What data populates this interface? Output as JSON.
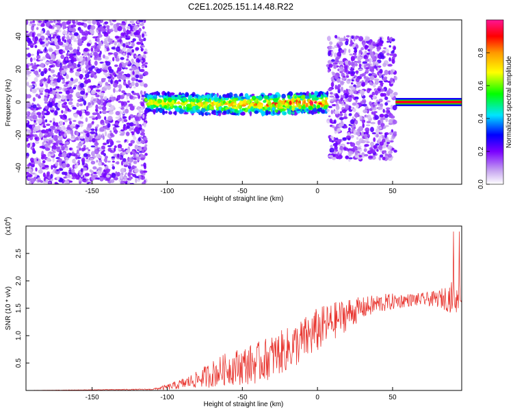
{
  "title": "C2E1.2025.151.14.48.R22",
  "chart_data": [
    {
      "type": "heatmap",
      "xlabel": "Height of straight line (km)",
      "ylabel": "Frequency (Hz)",
      "xlim": [
        -194,
        96
      ],
      "ylim": [
        -50,
        50
      ],
      "xticks": [
        -150,
        -100,
        -50,
        0,
        50
      ],
      "yticks": [
        -40,
        -20,
        0,
        20,
        40
      ],
      "colorbar": {
        "label": "Normalized spectral amplitude",
        "ticks": [
          0.0,
          0.2,
          0.4,
          0.6,
          0.8
        ],
        "range": [
          0,
          1
        ]
      },
      "regions": [
        {
          "x": [
            -194,
            -114
          ],
          "freq": [
            -50,
            50
          ],
          "level": 0.15
        },
        {
          "x": [
            -114,
            7
          ],
          "freq": [
            -6,
            6
          ],
          "level": 0.35
        },
        {
          "x": [
            7,
            52
          ],
          "freq": [
            -35,
            40
          ],
          "level": 0.15
        },
        {
          "x": [
            52,
            96
          ],
          "freq": [
            -1,
            1
          ],
          "level": 0.95
        }
      ]
    },
    {
      "type": "line",
      "xlabel": "Height of straight line (km)",
      "ylabel": "SNR (10 * v/v)",
      "multiplier_label": "(x10",
      "multiplier_exp": "4",
      "xlim": [
        -194,
        96
      ],
      "ylim": [
        0,
        3.0
      ],
      "xticks": [
        -150,
        -100,
        -50,
        0,
        50
      ],
      "yticks": [
        0.5,
        1.0,
        1.5,
        2.0,
        2.5
      ],
      "series": [
        {
          "color": "#e8342e",
          "x": [
            -194,
            -110,
            -100,
            -90,
            -80,
            -70,
            -60,
            -50,
            -40,
            -30,
            -20,
            -10,
            0,
            10,
            20,
            30,
            40,
            50,
            60,
            70,
            80,
            90,
            96
          ],
          "y": [
            0.0,
            0.02,
            0.06,
            0.12,
            0.2,
            0.3,
            0.4,
            0.45,
            0.5,
            0.62,
            0.75,
            0.9,
            1.1,
            1.25,
            1.4,
            1.5,
            1.58,
            1.62,
            1.65,
            1.66,
            1.67,
            1.7,
            1.72
          ],
          "noise": [
            0.0,
            0.01,
            0.05,
            0.1,
            0.15,
            0.25,
            0.3,
            0.35,
            0.38,
            0.4,
            0.4,
            0.42,
            0.42,
            0.35,
            0.3,
            0.2,
            0.18,
            0.15,
            0.12,
            0.12,
            0.15,
            0.3,
            0.3
          ]
        }
      ]
    }
  ]
}
